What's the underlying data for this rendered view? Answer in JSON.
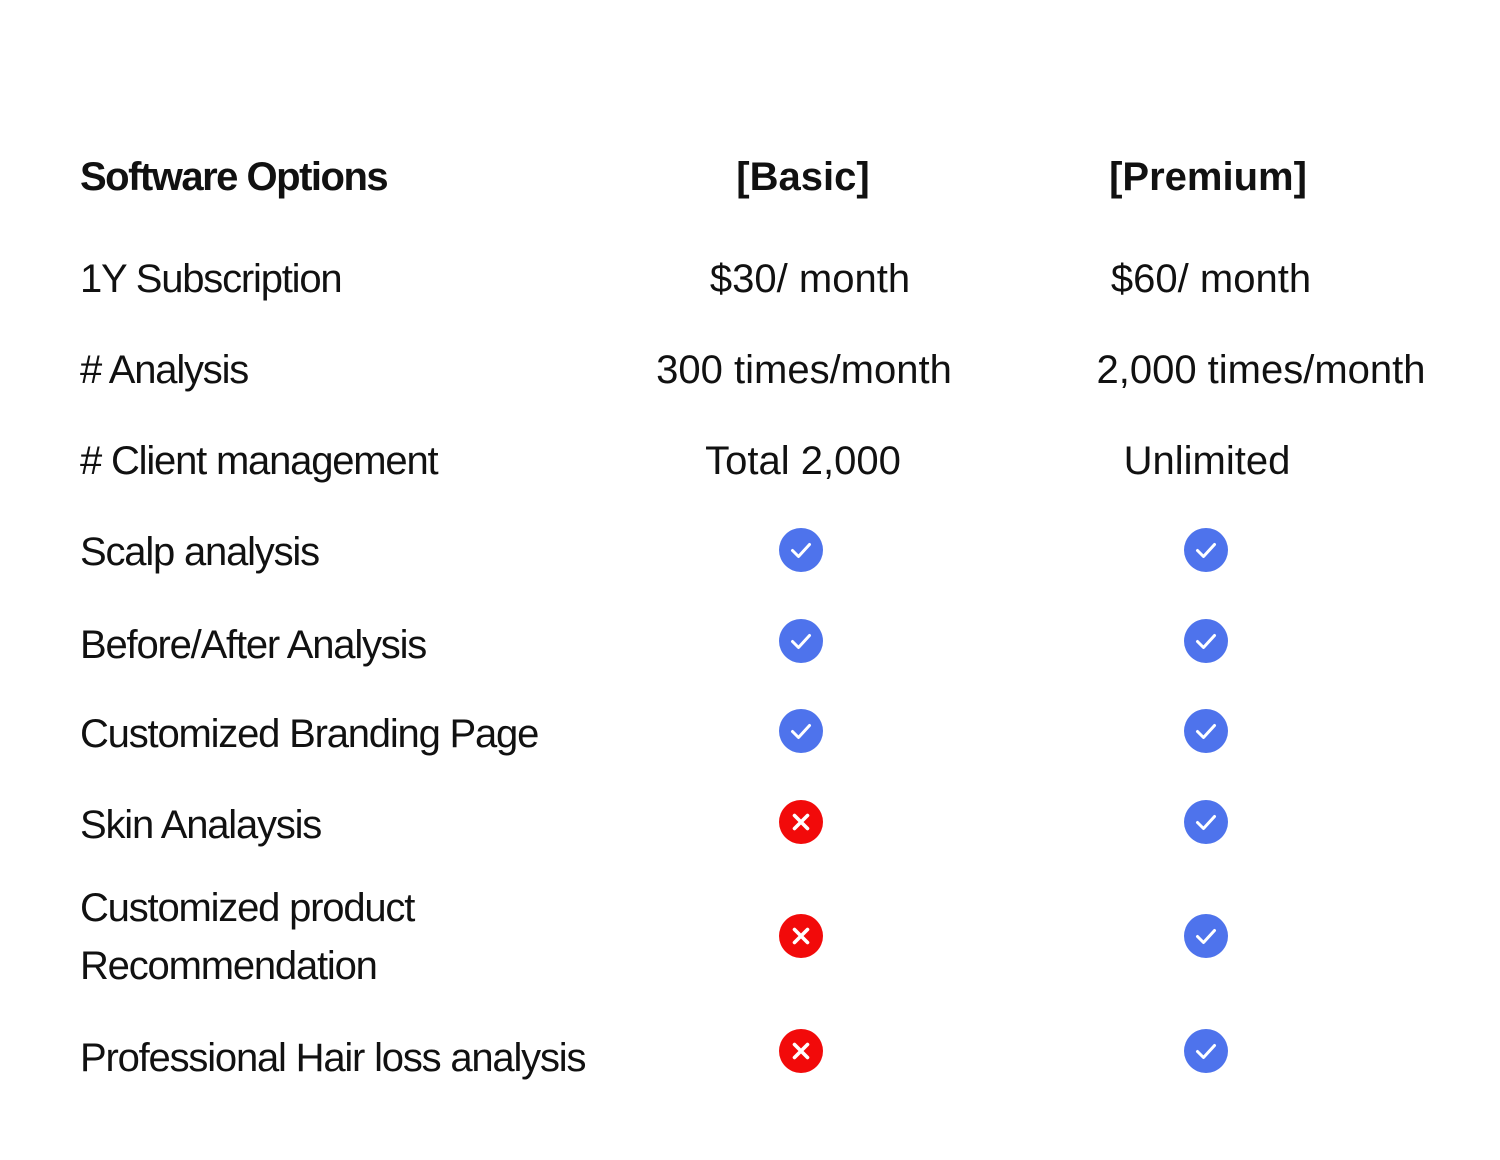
{
  "header": {
    "title": "Software Options",
    "basic": "[Basic]",
    "premium": "[Premium]"
  },
  "rows": [
    {
      "label": "1Y Subscription",
      "basic": "$30/ month",
      "premium": "$60/ month"
    },
    {
      "label": "# Analysis",
      "basic": "300 times/month",
      "premium": "2,000 times/month"
    },
    {
      "label": "# Client management",
      "basic": "Total 2,000",
      "premium": "Unlimited"
    },
    {
      "label": "Scalp analysis",
      "basic": "check",
      "premium": "check"
    },
    {
      "label": "Before/After Analysis",
      "basic": "check",
      "premium": "check"
    },
    {
      "label": "Customized Branding Page",
      "basic": "check",
      "premium": "check"
    },
    {
      "label": "Skin Analaysis",
      "basic": "cross",
      "premium": "check"
    },
    {
      "label": "Customized product Recommendation",
      "basic": "cross",
      "premium": "check"
    },
    {
      "label": "Professional Hair loss analysis",
      "basic": "cross",
      "premium": "check"
    }
  ],
  "colors": {
    "check": "#4e73ec",
    "cross": "#f20a0a",
    "text": "#111111"
  }
}
